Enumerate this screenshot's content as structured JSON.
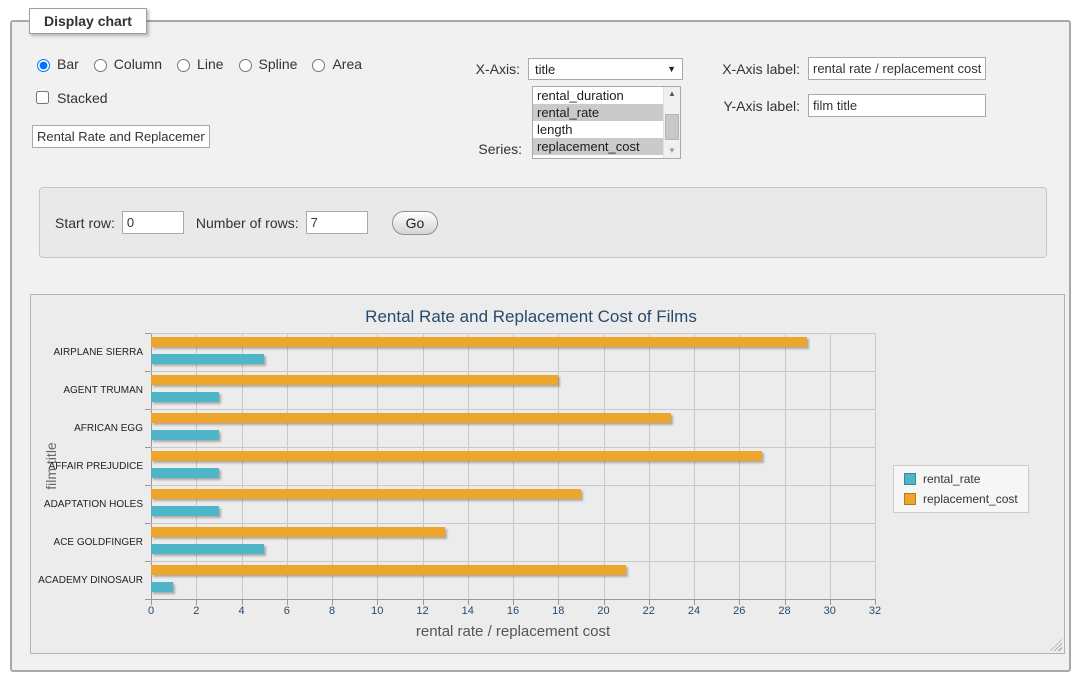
{
  "window": {
    "legend_title": "Display chart"
  },
  "controls": {
    "chart_types": [
      {
        "label": "Bar",
        "checked": true
      },
      {
        "label": "Column",
        "checked": false
      },
      {
        "label": "Line",
        "checked": false
      },
      {
        "label": "Spline",
        "checked": false
      },
      {
        "label": "Area",
        "checked": false
      }
    ],
    "stacked": {
      "label": "Stacked",
      "checked": false
    },
    "chart_title_input": {
      "value": "Rental Rate and Replacement Cost of Films"
    },
    "x_axis": {
      "label": "X-Axis:",
      "selected": "title",
      "arrow_icon": "▼"
    },
    "series": {
      "label": "Series:",
      "options": [
        {
          "label": "rental_duration",
          "selected": false
        },
        {
          "label": "rental_rate",
          "selected": true
        },
        {
          "label": "length",
          "selected": false
        },
        {
          "label": "replacement_cost",
          "selected": true
        }
      ],
      "scroll_up_icon": "▲",
      "scroll_down_icon": "▼"
    },
    "x_axis_label": {
      "label": "X-Axis label:",
      "value": "rental rate / replacement cost"
    },
    "y_axis_label": {
      "label": "Y-Axis label:",
      "value": "film title"
    }
  },
  "row_controls": {
    "start_row_label": "Start row:",
    "start_row_value": "0",
    "num_rows_label": "Number of rows:",
    "num_rows_value": "7",
    "go_label": "Go"
  },
  "chart_data": {
    "type": "bar",
    "title": "Rental Rate and Replacement Cost of Films",
    "categories": [
      "AIRPLANE SIERRA",
      "AGENT TRUMAN",
      "AFRICAN EGG",
      "AFFAIR PREJUDICE",
      "ADAPTATION HOLES",
      "ACE GOLDFINGER",
      "ACADEMY DINOSAUR"
    ],
    "series": [
      {
        "name": "rental_rate",
        "color": "#4FB6C8",
        "values": [
          4.99,
          2.99,
          2.99,
          2.99,
          2.99,
          4.99,
          0.99
        ]
      },
      {
        "name": "replacement_cost",
        "color": "#EDA52C",
        "values": [
          28.99,
          17.99,
          22.99,
          26.99,
          18.99,
          12.99,
          20.99
        ]
      }
    ],
    "xlabel": "rental rate / replacement cost",
    "ylabel": "film title",
    "xlim": [
      0,
      32
    ],
    "x_ticks": [
      0,
      2,
      4,
      6,
      8,
      10,
      12,
      14,
      16,
      18,
      20,
      22,
      24,
      26,
      28,
      30,
      32
    ],
    "legend_position": "right",
    "grid": true,
    "series_draw_order": "reversed",
    "colors": {
      "grid_line": "#c9c9c9",
      "axis_line": "#999999",
      "title_text": "#274b6d"
    }
  }
}
